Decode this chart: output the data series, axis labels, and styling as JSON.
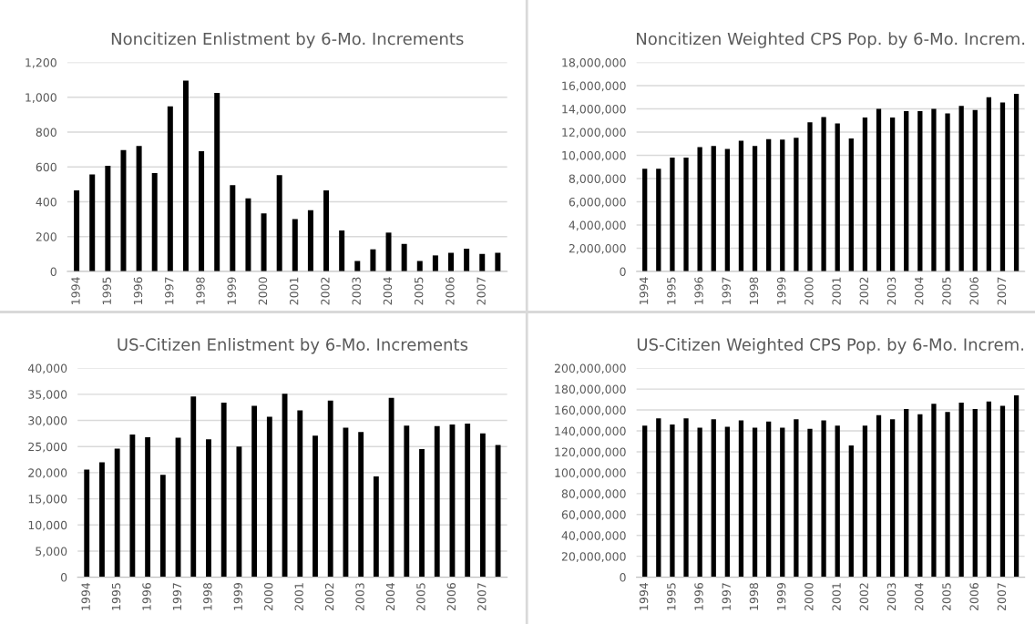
{
  "chart_data": [
    {
      "type": "bar",
      "title": "Noncitizen Enlistment by 6-Mo. Increments",
      "categories": [
        "1994",
        null,
        "1995",
        null,
        "1996",
        null,
        "1997",
        null,
        "1998",
        null,
        "1999",
        null,
        "2000",
        null,
        "2001",
        null,
        "2002",
        null,
        "2003",
        null,
        "2004",
        null,
        "2005",
        null,
        "2006",
        null,
        "2007",
        null
      ],
      "values": [
        465,
        557,
        607,
        697,
        720,
        565,
        948,
        1095,
        690,
        1025,
        495,
        420,
        333,
        553,
        300,
        352,
        465,
        235,
        60,
        127,
        223,
        158,
        60,
        92,
        107,
        130,
        100,
        107
      ],
      "color": "#000000",
      "ylim": [
        0,
        1200
      ],
      "yticks": [
        0,
        200,
        400,
        600,
        800,
        {
          "value": 1000,
          "label": "1,000"
        },
        {
          "value": 1200,
          "label": "1,200"
        }
      ],
      "grid": "y"
    },
    {
      "type": "bar",
      "title": "Noncitizen Weighted CPS Pop. by 6-Mo. Increm.",
      "categories": [
        "1994",
        null,
        "1995",
        null,
        "1996",
        null,
        "1997",
        null,
        "1998",
        null,
        "1999",
        null,
        "2000",
        null,
        "2001",
        null,
        "2002",
        null,
        "2003",
        null,
        "2004",
        null,
        "2005",
        null,
        "2006",
        null,
        "2007",
        null
      ],
      "values": [
        8850000,
        8850000,
        9800000,
        9800000,
        10700000,
        10800000,
        10550000,
        11250000,
        10800000,
        11400000,
        11350000,
        11500000,
        12850000,
        13300000,
        12750000,
        11450000,
        13250000,
        14000000,
        13250000,
        13800000,
        13800000,
        14000000,
        13600000,
        14250000,
        13900000,
        15000000,
        14550000,
        15300000
      ],
      "color": "#000000",
      "ylim": [
        0,
        18000000
      ],
      "yticks": [
        0,
        {
          "value": 2000000,
          "label": "2,000,000"
        },
        {
          "value": 4000000,
          "label": "4,000,000"
        },
        {
          "value": 6000000,
          "label": "6,000,000"
        },
        {
          "value": 8000000,
          "label": "8,000,000"
        },
        {
          "value": 10000000,
          "label": "10,000,000"
        },
        {
          "value": 12000000,
          "label": "12,000,000"
        },
        {
          "value": 14000000,
          "label": "14,000,000"
        },
        {
          "value": 16000000,
          "label": "16,000,000"
        },
        {
          "value": 18000000,
          "label": "18,000,000"
        }
      ],
      "grid": "y"
    },
    {
      "type": "bar",
      "title": "US-Citizen Enlistment by 6-Mo. Increments",
      "categories": [
        "1994",
        null,
        "1995",
        null,
        "1996",
        null,
        "1997",
        null,
        "1998",
        null,
        "1999",
        null,
        "2000",
        null,
        "2001",
        null,
        "2002",
        null,
        "2003",
        null,
        "2004",
        null,
        "2005",
        null,
        "2006",
        null,
        "2007",
        null
      ],
      "values": [
        20600,
        22000,
        24600,
        27300,
        26800,
        19600,
        26700,
        34600,
        26400,
        33400,
        25000,
        32800,
        30700,
        35100,
        31900,
        27100,
        33800,
        28600,
        27800,
        19300,
        34300,
        29000,
        24500,
        28900,
        29200,
        29400,
        27500,
        25300
      ],
      "color": "#000000",
      "ylim": [
        0,
        40000
      ],
      "yticks": [
        0,
        {
          "value": 5000,
          "label": "5,000"
        },
        {
          "value": 10000,
          "label": "10,000"
        },
        {
          "value": 15000,
          "label": "15,000"
        },
        {
          "value": 20000,
          "label": "20,000"
        },
        {
          "value": 25000,
          "label": "25,000"
        },
        {
          "value": 30000,
          "label": "30,000"
        },
        {
          "value": 35000,
          "label": "35,000"
        },
        {
          "value": 40000,
          "label": "40,000"
        }
      ],
      "grid": "y"
    },
    {
      "type": "bar",
      "title": "US-Citizen Weighted CPS Pop. by 6-Mo. Increm.",
      "categories": [
        "1994",
        null,
        "1995",
        null,
        "1996",
        null,
        "1997",
        null,
        "1998",
        null,
        "1999",
        null,
        "2000",
        null,
        "2001",
        null,
        "2002",
        null,
        "2003",
        null,
        "2004",
        null,
        "2005",
        null,
        "2006",
        null,
        "2007",
        null
      ],
      "values": [
        145000000,
        152000000,
        146000000,
        152000000,
        143000000,
        151000000,
        144000000,
        150000000,
        143000000,
        149000000,
        143000000,
        151000000,
        142000000,
        150000000,
        145000000,
        126000000,
        145000000,
        155000000,
        151000000,
        161000000,
        156000000,
        166000000,
        158000000,
        167000000,
        161000000,
        168000000,
        164000000,
        174000000
      ],
      "color": "#000000",
      "ylim": [
        0,
        200000000
      ],
      "yticks": [
        0,
        {
          "value": 20000000,
          "label": "20,000,000"
        },
        {
          "value": 40000000,
          "label": "40,000,000"
        },
        {
          "value": 60000000,
          "label": "60,000,000"
        },
        {
          "value": 80000000,
          "label": "80,000,000"
        },
        {
          "value": 100000000,
          "label": "100,000,000"
        },
        {
          "value": 120000000,
          "label": "120,000,000"
        },
        {
          "value": 140000000,
          "label": "140,000,000"
        },
        {
          "value": 160000000,
          "label": "160,000,000"
        },
        {
          "value": 180000000,
          "label": "180,000,000"
        },
        {
          "value": 200000000,
          "label": "200,000,000"
        }
      ],
      "grid": "y"
    }
  ]
}
